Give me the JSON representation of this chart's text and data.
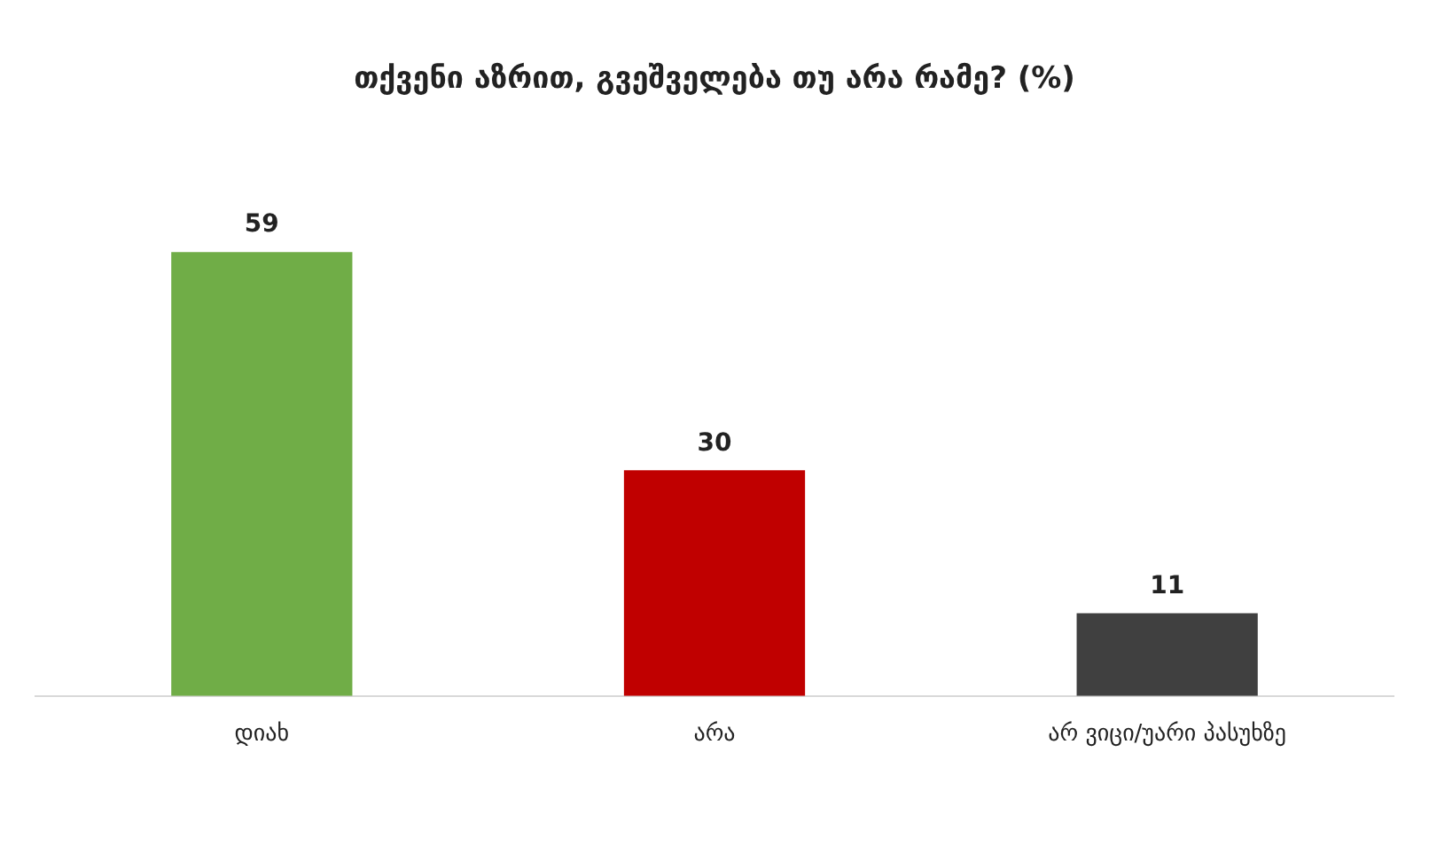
{
  "chart_data": {
    "type": "bar",
    "title": "თქვენი აზრით, გვეშველება თუ არა რამე? (%)",
    "categories": [
      "დიახ",
      "არა",
      "არ ვიცი/უარი პასუხზე"
    ],
    "values": [
      59,
      30,
      11
    ],
    "colors": [
      "#70ad47",
      "#c00000",
      "#404040"
    ],
    "data_labels": true,
    "grid": false,
    "legend": false
  }
}
